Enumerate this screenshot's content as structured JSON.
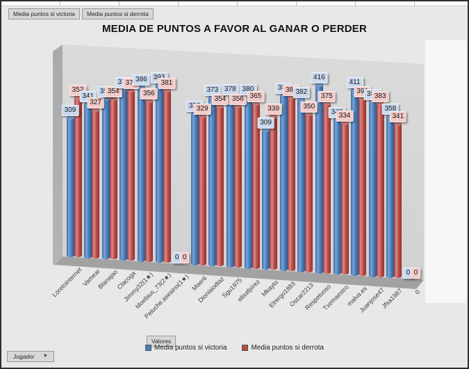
{
  "app": {
    "top_field_buttons": [
      "Media puntos  si victoria",
      "Media puntos  si derrota"
    ],
    "values_button": "Valores",
    "axis_field_button": "Jugador",
    "background_color": "#e7e9e8"
  },
  "chart_data": {
    "type": "bar",
    "subtype": "3d-cylinder",
    "title": "MEDIA DE PUNTOS A FAVOR AL GANAR O PERDER",
    "categories": [
      "Loretointernet",
      "Vamear",
      "Blanajao",
      "Clacoga",
      "Jimmy32(1★)",
      "Moebius_73(2★)",
      "Peluche.asesino(1★)",
      "Maer6",
      "Dionisiodiaz",
      "Sgu1975",
      "elisafpírez",
      "Mkayto",
      "Elrergo1883",
      "Oscar2213",
      "Respetuoso",
      "Txemaestro",
      "malva.es",
      "Juanjose47",
      "Jfsa1987",
      "0"
    ],
    "series": [
      {
        "name": "Media puntos si victoria",
        "color": "#4a7ebb",
        "label_bg": "#c9d9ee",
        "values": [
          309,
          341,
          355,
          377,
          386,
          393,
          0,
          335,
          373,
          378,
          380,
          309,
          388,
          382,
          416,
          342,
          411,
          387,
          358,
          0
        ]
      },
      {
        "name": "Media puntos si derrota",
        "color": "#bf4b47",
        "label_bg": "#f2cbc9",
        "values": [
          352,
          327,
          354,
          375,
          356,
          381,
          0,
          329,
          354,
          356,
          365,
          339,
          384,
          350,
          375,
          334,
          390,
          383,
          341,
          0
        ]
      }
    ],
    "data_labels": true,
    "legend_position": "bottom",
    "value_axis_visible": false
  }
}
